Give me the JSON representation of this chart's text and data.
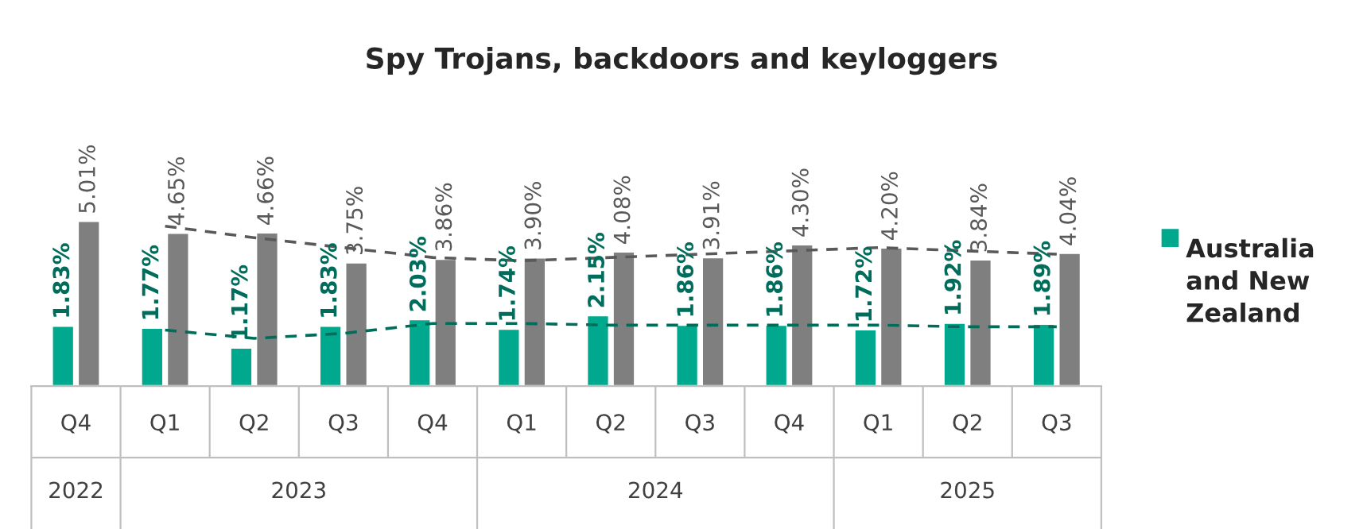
{
  "chart_data": {
    "type": "bar",
    "title": "Spy Trojans, backdoors and keyloggers",
    "categories": [
      "Q4",
      "Q1",
      "Q2",
      "Q3",
      "Q4",
      "Q1",
      "Q2",
      "Q3",
      "Q4",
      "Q1",
      "Q2",
      "Q3"
    ],
    "annotations": [
      "2022",
      "2023",
      "2024",
      "2025"
    ],
    "series": [
      {
        "name": "Australia and New Zealand",
        "color": "#00a88e",
        "values": [
          1.83,
          1.77,
          1.17,
          1.83,
          2.03,
          1.74,
          2.15,
          1.86,
          1.86,
          1.72,
          1.92,
          1.89
        ],
        "value_labels": [
          "1.83%",
          "1.77%",
          "1.17%",
          "1.83%",
          "2.03%",
          "1.74%",
          "2.15%",
          "1.86%",
          "1.86%",
          "1.72%",
          "1.92%",
          "1.89%"
        ]
      },
      {
        "color": "#7f7f7f",
        "values": [
          5.01,
          4.65,
          4.66,
          3.75,
          3.86,
          3.9,
          4.08,
          3.91,
          4.3,
          4.2,
          3.84,
          4.04
        ],
        "value_labels": [
          "5.01%",
          "4.65%",
          "4.66%",
          "3.75%",
          "3.86%",
          "3.90%",
          "4.08%",
          "3.91%",
          "4.30%",
          "4.20%",
          "3.84%",
          "4.04%"
        ]
      },
      {
        "type": "line",
        "color": "#006d5b",
        "line_style": "dashed",
        "values": [
          null,
          1.7,
          1.45,
          1.6,
          1.9,
          1.9,
          1.85,
          1.85,
          1.85,
          1.85,
          1.8,
          1.8
        ]
      },
      {
        "type": "line",
        "color": "#595959",
        "line_style": "dashed",
        "values": [
          null,
          4.85,
          4.5,
          4.2,
          3.9,
          3.8,
          3.9,
          4.0,
          4.1,
          4.2,
          4.1,
          4.0
        ]
      }
    ],
    "tick_labels": "x",
    "legend": "right"
  }
}
